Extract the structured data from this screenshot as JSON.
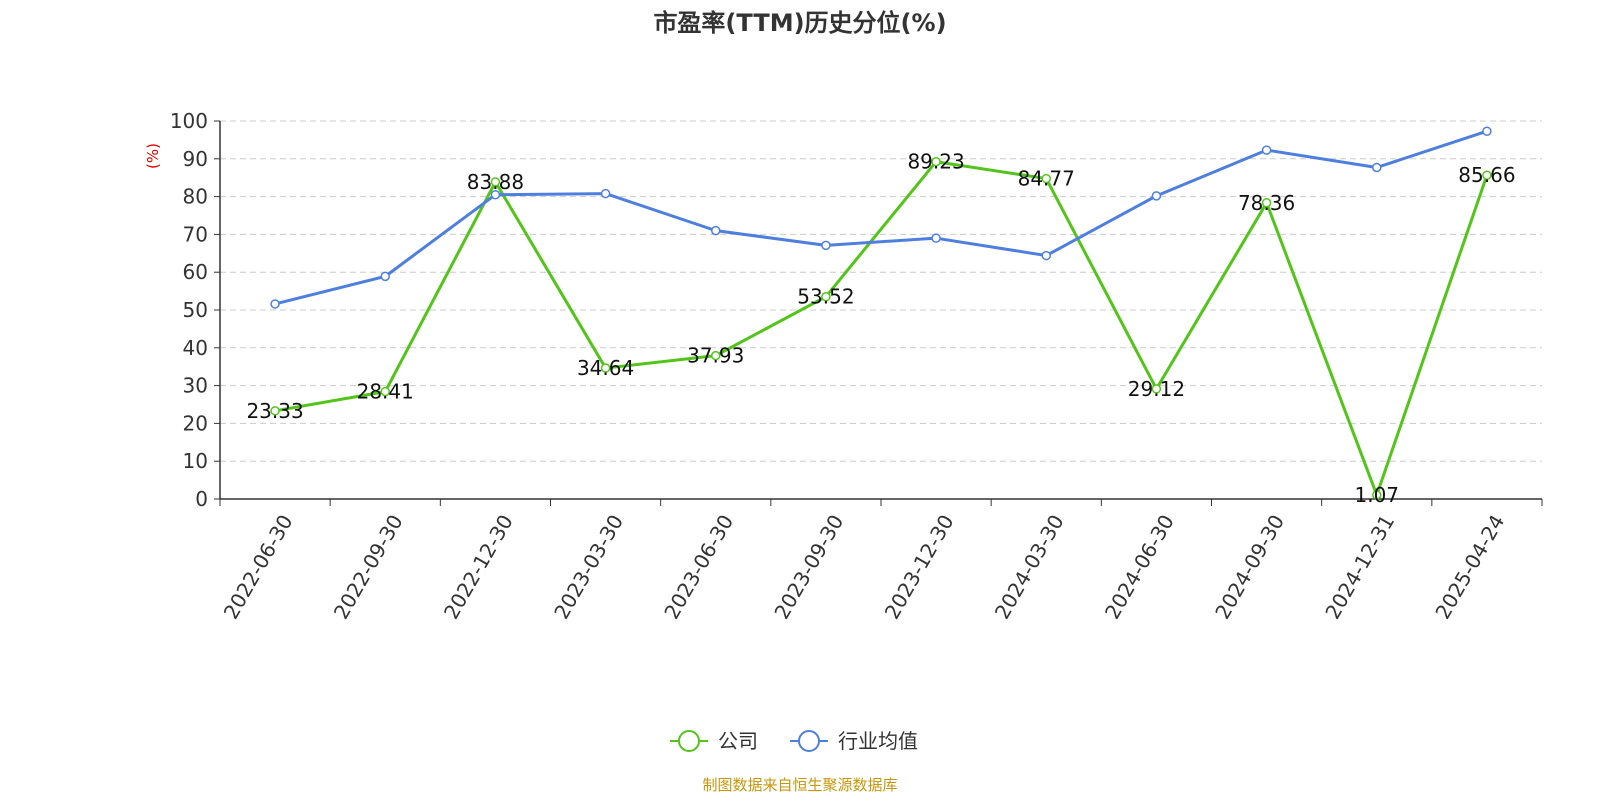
{
  "chart_data": {
    "type": "line",
    "title": "市盈率(TTM)历史分位(%)",
    "ylabel": "(%)",
    "ylim": [
      0,
      100
    ],
    "yticks": [
      0,
      10,
      20,
      30,
      40,
      50,
      60,
      70,
      80,
      90,
      100
    ],
    "grid": true,
    "legend_position": "bottom-center",
    "categories": [
      "2022-06-30",
      "2022-09-30",
      "2022-12-30",
      "2023-03-30",
      "2023-06-30",
      "2023-09-30",
      "2023-12-30",
      "2024-03-30",
      "2024-06-30",
      "2024-09-30",
      "2024-12-31",
      "2025-04-24"
    ],
    "series": [
      {
        "name": "公司",
        "color": "#52c41a",
        "show_labels": true,
        "values": [
          23.33,
          28.41,
          83.88,
          34.64,
          37.93,
          53.52,
          89.23,
          84.77,
          29.12,
          78.36,
          1.07,
          85.66
        ],
        "labels": [
          "23.33",
          "28.41",
          "83.88",
          "34.64",
          "37.93",
          "53.52",
          "89.23",
          "84.77",
          "29.12",
          "78.36",
          "1.07",
          "85.66"
        ]
      },
      {
        "name": "行业均值",
        "color": "#4e7fde",
        "show_labels": false,
        "values": [
          51.6,
          58.9,
          80.5,
          80.8,
          71.0,
          67.1,
          69.0,
          64.4,
          80.2,
          92.3,
          87.7,
          97.3
        ]
      }
    ]
  },
  "source": "制图数据来自恒生聚源数据库"
}
